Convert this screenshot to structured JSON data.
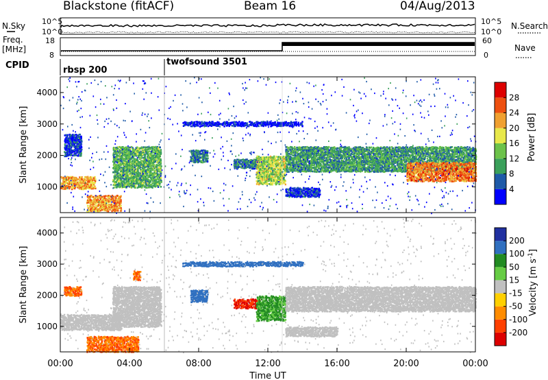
{
  "header": {
    "station": "Blackstone (fitACF)",
    "beam": "Beam 16",
    "date": "04/Aug/2013"
  },
  "left_labels": {
    "nsky": "N.Sky",
    "freq_line1": "Freq.",
    "freq_line2": "[MHz]",
    "cpid": "CPID"
  },
  "right_labels": {
    "nsearch": "N.Search",
    "nave": "Nave"
  },
  "noise_panel": {
    "left_ticks": [
      "10^5",
      "10^0"
    ],
    "right_ticks": [
      "10^5",
      "10^0"
    ]
  },
  "freq_panel": {
    "left_ticks": [
      "18",
      "8"
    ],
    "right_ticks": [
      "60",
      "0"
    ]
  },
  "cpid_panel": {
    "segments": [
      {
        "label": "rbsp 200",
        "start_hour": 0
      },
      {
        "label": "twofsound 3501",
        "start_hour": 6
      }
    ]
  },
  "colors": {
    "background": "#ffffff",
    "grid": "#000000"
  },
  "chart_data": [
    {
      "type": "heatmap",
      "panel": "power",
      "xlabel": "",
      "ylabel": "Slant Range [km]",
      "xlim": [
        0,
        24
      ],
      "ylim": [
        180,
        4500
      ],
      "y_ticks": [
        "1000",
        "2000",
        "3000",
        "4000"
      ],
      "colorbar": {
        "label": "Power [dB]",
        "ticks": [
          "4",
          "8",
          "12",
          "16",
          "20",
          "24",
          "28"
        ],
        "colors": [
          "#0000ff",
          "#1e5aa8",
          "#3aa05a",
          "#6cc24a",
          "#e8e84a",
          "#f0a030",
          "#ee5010",
          "#dd0000"
        ]
      },
      "bands": [
        {
          "t0": 0,
          "t1": 2.0,
          "r0": 950,
          "r1": 1350,
          "level": 24
        },
        {
          "t0": 1.5,
          "t1": 3.5,
          "r0": 250,
          "r1": 750,
          "level": 24
        },
        {
          "t0": 3.0,
          "t1": 5.8,
          "r0": 1000,
          "r1": 2300,
          "level": 14
        },
        {
          "t0": 0.2,
          "t1": 1.2,
          "r0": 2000,
          "r1": 2700,
          "level": 6
        },
        {
          "t0": 7.5,
          "t1": 8.5,
          "r0": 1800,
          "r1": 2200,
          "level": 10
        },
        {
          "t0": 10,
          "t1": 11.5,
          "r0": 1600,
          "r1": 1900,
          "level": 10
        },
        {
          "t0": 11.3,
          "t1": 13,
          "r0": 1100,
          "r1": 2000,
          "level": 18
        },
        {
          "t0": 13,
          "t1": 24,
          "r0": 1500,
          "r1": 2300,
          "level": 12
        },
        {
          "t0": 20,
          "t1": 24,
          "r0": 1200,
          "r1": 1800,
          "level": 26
        },
        {
          "t0": 13,
          "t1": 15,
          "r0": 700,
          "r1": 1000,
          "level": 6
        },
        {
          "t0": 7,
          "t1": 14,
          "r0": 2950,
          "r1": 3100,
          "level": 4
        }
      ]
    },
    {
      "type": "heatmap",
      "panel": "velocity",
      "xlabel": "Time UT",
      "ylabel": "Slant Range [km]",
      "xlim": [
        0,
        24
      ],
      "ylim": [
        180,
        4500
      ],
      "y_ticks": [
        "1000",
        "2000",
        "3000",
        "4000"
      ],
      "x_ticks": [
        "00:00",
        "04:00",
        "08:00",
        "12:00",
        "16:00",
        "20:00",
        "00:00"
      ],
      "colorbar": {
        "label": "Velocity [m s^-1]",
        "ticks": [
          "200",
          "100",
          "50",
          "15",
          "-15",
          "-50",
          "-100",
          "-200"
        ],
        "colors": [
          "#2030a0",
          "#3070c0",
          "#228b22",
          "#66cc44",
          "#c0c0c0",
          "#ffd000",
          "#ff8c00",
          "#ff4000",
          "#dd0000"
        ]
      },
      "bands": [
        {
          "t0": 0,
          "t1": 3.5,
          "r0": 900,
          "r1": 1400,
          "level": 0
        },
        {
          "t0": 1.5,
          "t1": 4.5,
          "r0": 200,
          "r1": 700,
          "level": -100
        },
        {
          "t0": 3.0,
          "t1": 5.8,
          "r0": 1000,
          "r1": 2300,
          "level": 0
        },
        {
          "t0": 0.2,
          "t1": 1.2,
          "r0": 2000,
          "r1": 2300,
          "level": -100
        },
        {
          "t0": 7.5,
          "t1": 8.5,
          "r0": 1800,
          "r1": 2200,
          "level": 150
        },
        {
          "t0": 10,
          "t1": 11.5,
          "r0": 1600,
          "r1": 1900,
          "level": -200
        },
        {
          "t0": 11.3,
          "t1": 13,
          "r0": 1200,
          "r1": 2000,
          "level": 60
        },
        {
          "t0": 13,
          "t1": 24,
          "r0": 1500,
          "r1": 2300,
          "level": 0
        },
        {
          "t0": 13,
          "t1": 16,
          "r0": 700,
          "r1": 1000,
          "level": 0
        },
        {
          "t0": 4.2,
          "t1": 4.6,
          "r0": 2500,
          "r1": 2800,
          "level": -100
        },
        {
          "t0": 7,
          "t1": 14,
          "r0": 2950,
          "r1": 3100,
          "level": 150
        }
      ]
    }
  ]
}
